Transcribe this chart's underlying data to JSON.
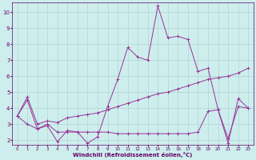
{
  "xlabel": "Windchill (Refroidissement éolien,°C)",
  "background_color": "#cdeeed",
  "grid_color": "#aacccc",
  "line_color": "#993399",
  "xlim_min": -0.5,
  "xlim_max": 23.5,
  "ylim_min": 1.7,
  "ylim_max": 10.6,
  "yticks": [
    2,
    3,
    4,
    5,
    6,
    7,
    8,
    9,
    10
  ],
  "xticks": [
    0,
    1,
    2,
    3,
    4,
    5,
    6,
    7,
    8,
    9,
    10,
    11,
    12,
    13,
    14,
    15,
    16,
    17,
    18,
    19,
    20,
    21,
    22,
    23
  ],
  "line1_x": [
    0,
    1,
    2,
    3,
    4,
    5,
    6,
    7,
    8,
    9,
    10,
    11,
    12,
    13,
    14,
    15,
    16,
    17,
    18,
    19,
    20,
    21,
    22,
    23
  ],
  "line1_y": [
    3.5,
    4.5,
    2.7,
    2.9,
    1.9,
    2.6,
    2.5,
    1.8,
    2.2,
    4.1,
    5.8,
    7.8,
    7.2,
    7.0,
    10.4,
    8.4,
    8.5,
    8.3,
    6.3,
    6.5,
    3.9,
    1.8,
    4.6,
    4.0
  ],
  "line2_x": [
    0,
    1,
    2,
    3,
    4,
    5,
    6,
    7,
    8,
    9,
    10,
    11,
    12,
    13,
    14,
    15,
    16,
    17,
    18,
    19,
    20,
    21,
    22,
    23
  ],
  "line2_y": [
    3.5,
    4.7,
    3.0,
    3.2,
    3.1,
    3.4,
    3.5,
    3.6,
    3.7,
    3.9,
    4.1,
    4.3,
    4.5,
    4.7,
    4.9,
    5.0,
    5.2,
    5.4,
    5.6,
    5.8,
    5.9,
    6.0,
    6.2,
    6.5
  ],
  "line3_x": [
    0,
    1,
    2,
    3,
    4,
    5,
    6,
    7,
    8,
    9,
    10,
    11,
    12,
    13,
    14,
    15,
    16,
    17,
    18,
    19,
    20,
    21,
    22,
    23
  ],
  "line3_y": [
    3.5,
    3.0,
    2.7,
    3.0,
    2.5,
    2.5,
    2.5,
    2.5,
    2.5,
    2.5,
    2.4,
    2.4,
    2.4,
    2.4,
    2.4,
    2.4,
    2.4,
    2.4,
    2.5,
    3.8,
    3.9,
    2.1,
    4.1,
    4.0
  ]
}
